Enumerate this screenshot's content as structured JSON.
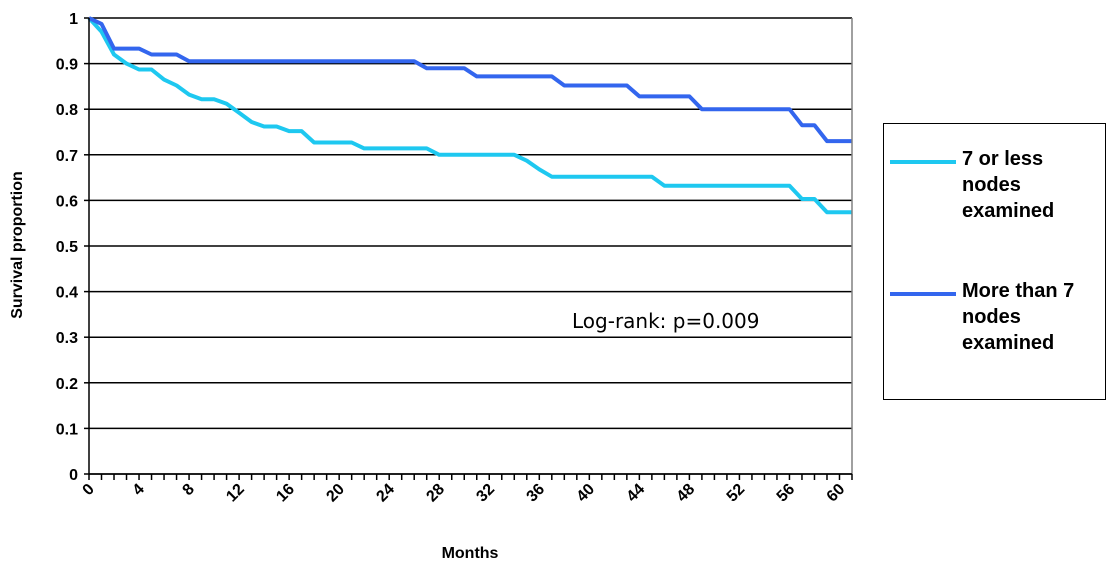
{
  "chart_data": {
    "type": "line",
    "xlabel": "Months",
    "ylabel": "Survival proportion",
    "xlim": [
      0,
      61
    ],
    "ylim": [
      0,
      1
    ],
    "x_ticks": [
      "0",
      "4",
      "8",
      "12",
      "16",
      "20",
      "24",
      "28",
      "32",
      "36",
      "40",
      "44",
      "48",
      "52",
      "56",
      "60"
    ],
    "y_ticks": [
      "0",
      "0.1",
      "0.2",
      "0.3",
      "0.4",
      "0.5",
      "0.6",
      "0.7",
      "0.8",
      "0.9",
      "1"
    ],
    "grid": "horizontal",
    "legend_position": "right",
    "annotation": "Log-rank: p=0.009",
    "series": [
      {
        "name": "7 or less nodes examined",
        "color": "#1EC8F0",
        "x": [
          0,
          1,
          2,
          3,
          4,
          5,
          6,
          7,
          8,
          9,
          10,
          11,
          12,
          13,
          14,
          15,
          16,
          17,
          18,
          19,
          20,
          21,
          22,
          23,
          24,
          25,
          26,
          27,
          28,
          29,
          30,
          31,
          32,
          33,
          34,
          35,
          36,
          37,
          38,
          39,
          40,
          41,
          42,
          43,
          44,
          45,
          46,
          47,
          48,
          49,
          50,
          51,
          52,
          53,
          54,
          55,
          56,
          57,
          58,
          59,
          60,
          61
        ],
        "y": [
          1.0,
          0.97,
          0.92,
          0.9,
          0.887,
          0.887,
          0.865,
          0.852,
          0.832,
          0.822,
          0.822,
          0.812,
          0.792,
          0.772,
          0.762,
          0.762,
          0.752,
          0.752,
          0.727,
          0.727,
          0.727,
          0.727,
          0.714,
          0.714,
          0.714,
          0.714,
          0.714,
          0.714,
          0.7,
          0.7,
          0.7,
          0.7,
          0.7,
          0.7,
          0.7,
          0.687,
          0.668,
          0.652,
          0.652,
          0.652,
          0.652,
          0.652,
          0.652,
          0.652,
          0.652,
          0.652,
          0.632,
          0.632,
          0.632,
          0.632,
          0.632,
          0.632,
          0.632,
          0.632,
          0.632,
          0.632,
          0.632,
          0.603,
          0.603,
          0.574,
          0.574,
          0.574
        ]
      },
      {
        "name": "More than 7 nodes examined",
        "color": "#3366EE",
        "x": [
          0,
          1,
          2,
          3,
          4,
          5,
          6,
          7,
          8,
          9,
          10,
          11,
          12,
          13,
          14,
          15,
          16,
          17,
          18,
          19,
          20,
          21,
          22,
          23,
          24,
          25,
          26,
          27,
          28,
          29,
          30,
          31,
          32,
          33,
          34,
          35,
          36,
          37,
          38,
          39,
          40,
          41,
          42,
          43,
          44,
          45,
          46,
          47,
          48,
          49,
          50,
          51,
          52,
          53,
          54,
          55,
          56,
          57,
          58,
          59,
          60,
          61
        ],
        "y": [
          1.0,
          0.987,
          0.933,
          0.933,
          0.933,
          0.92,
          0.92,
          0.92,
          0.905,
          0.905,
          0.905,
          0.905,
          0.905,
          0.905,
          0.905,
          0.905,
          0.905,
          0.905,
          0.905,
          0.905,
          0.905,
          0.905,
          0.905,
          0.905,
          0.905,
          0.905,
          0.905,
          0.89,
          0.89,
          0.89,
          0.89,
          0.872,
          0.872,
          0.872,
          0.872,
          0.872,
          0.872,
          0.872,
          0.852,
          0.852,
          0.852,
          0.852,
          0.852,
          0.852,
          0.828,
          0.828,
          0.828,
          0.828,
          0.828,
          0.8,
          0.8,
          0.8,
          0.8,
          0.8,
          0.8,
          0.8,
          0.8,
          0.765,
          0.765,
          0.73,
          0.73,
          0.73
        ]
      }
    ]
  }
}
